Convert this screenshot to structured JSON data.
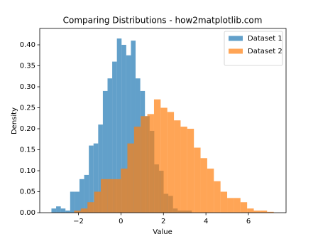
{
  "chart_data": {
    "type": "histogram",
    "title": "Comparing Distributions - how2matplotlib.com",
    "xlabel": "Value",
    "ylabel": "Density",
    "xlim": [
      -3.82,
      7.77
    ],
    "ylim": [
      0,
      0.439
    ],
    "xticks": [
      {
        "value": -2,
        "label": "−2"
      },
      0,
      2,
      4,
      6
    ],
    "yticks": [
      {
        "value": 0,
        "label": "0.00"
      },
      {
        "value": 0.05,
        "label": "0.05"
      },
      {
        "value": 0.1,
        "label": "0.10"
      },
      {
        "value": 0.15,
        "label": "0.15"
      },
      {
        "value": 0.2,
        "label": "0.20"
      },
      {
        "value": 0.25,
        "label": "0.25"
      },
      {
        "value": 0.3,
        "label": "0.30"
      },
      {
        "value": 0.35,
        "label": "0.35"
      },
      {
        "value": 0.4,
        "label": "0.40"
      }
    ],
    "legend": "upper right",
    "alpha": 0.7,
    "series": [
      {
        "name": "Dataset 1",
        "color": "#1f77b4",
        "bins": [
          -3.27,
          -3.05,
          -2.83,
          -2.61,
          -2.39,
          -2.17,
          -1.95,
          -1.73,
          -1.51,
          -1.29,
          -1.07,
          -0.85,
          -0.63,
          -0.41,
          -0.19,
          0.03,
          0.25,
          0.47,
          0.69,
          0.91,
          1.13,
          1.35,
          1.57,
          1.79,
          2.01,
          2.23,
          2.45,
          2.67,
          2.89,
          3.11,
          3.33
        ],
        "values": [
          0.01,
          0.015,
          0.01,
          0.005,
          0.05,
          0.05,
          0.08,
          0.09,
          0.16,
          0.165,
          0.21,
          0.29,
          0.32,
          0.36,
          0.415,
          0.4,
          0.375,
          0.41,
          0.32,
          0.29,
          0.23,
          0.195,
          0.115,
          0.1,
          0.045,
          0.04,
          0.01,
          0.005,
          0.005,
          0.005
        ]
      },
      {
        "name": "Dataset 2",
        "color": "#ff7f0e",
        "bins": [
          -2.2,
          -1.887,
          -1.574,
          -1.261,
          -0.948,
          -0.635,
          -0.322,
          -0.009,
          0.304,
          0.617,
          0.93,
          1.243,
          1.556,
          1.869,
          2.182,
          2.495,
          2.808,
          3.121,
          3.434,
          3.747,
          4.06,
          4.373,
          4.686,
          4.999,
          5.312,
          5.625,
          5.938,
          6.251,
          6.564,
          6.877,
          7.19
        ],
        "values": [
          0.005,
          0.01,
          0.025,
          0.05,
          0.08,
          0.08,
          0.08,
          0.105,
          0.165,
          0.205,
          0.23,
          0.235,
          0.27,
          0.25,
          0.24,
          0.22,
          0.205,
          0.2,
          0.155,
          0.13,
          0.105,
          0.075,
          0.05,
          0.035,
          0.035,
          0.025,
          0.01,
          0.005,
          0.005,
          0.002
        ]
      }
    ]
  }
}
